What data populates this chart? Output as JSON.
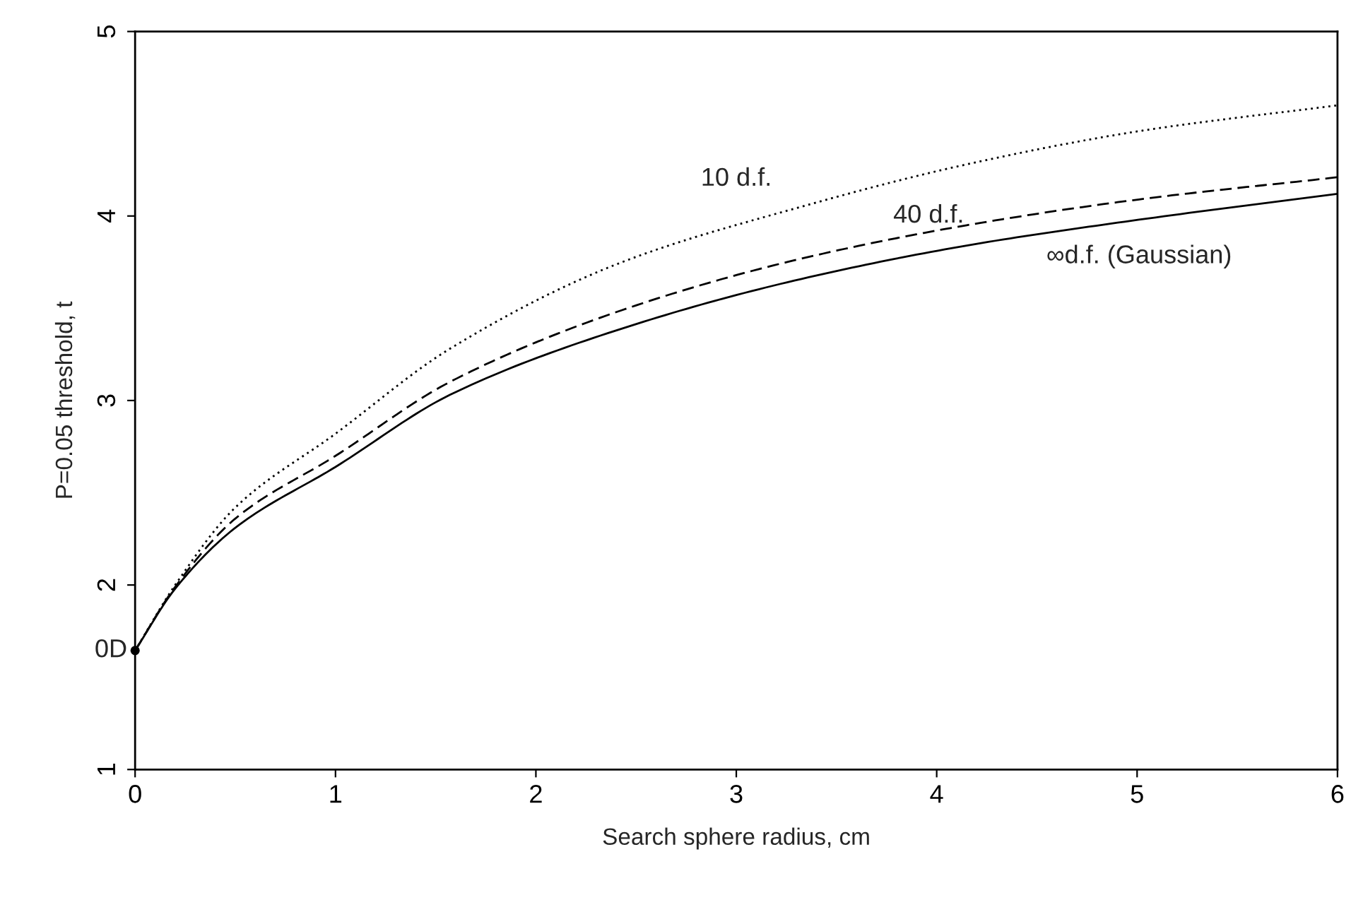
{
  "chart_data": {
    "type": "line",
    "xlabel": "Search sphere radius, cm",
    "ylabel": "P=0.05 threshold, t",
    "xlim": [
      0,
      6
    ],
    "ylim": [
      1,
      5
    ],
    "xticks": [
      0,
      1,
      2,
      3,
      4,
      5,
      6
    ],
    "yticks": [
      1,
      2,
      3,
      4,
      5
    ],
    "grid": false,
    "legend": false,
    "series": [
      {
        "color": "#000000",
        "line_style": "dotted",
        "x": [
          0,
          0.2,
          0.5,
          1,
          1.57,
          2.43,
          3.29,
          4.15,
          5.01,
          6
        ],
        "values": [
          1.645,
          2.0,
          2.42,
          2.82,
          3.28,
          3.75,
          4.04,
          4.28,
          4.46,
          4.6
        ]
      },
      {
        "color": "#000000",
        "line_style": "dashed",
        "x": [
          0,
          0.2,
          0.5,
          1,
          1.57,
          2.43,
          3.29,
          4.15,
          5.01,
          6
        ],
        "values": [
          1.645,
          1.99,
          2.36,
          2.7,
          3.1,
          3.49,
          3.76,
          3.95,
          4.09,
          4.21
        ]
      },
      {
        "color": "#000000",
        "line_style": "solid",
        "x": [
          0,
          0.2,
          0.5,
          1,
          1.57,
          2.43,
          3.29,
          4.15,
          5.01,
          6
        ],
        "values": [
          1.645,
          1.98,
          2.31,
          2.64,
          3.03,
          3.39,
          3.65,
          3.84,
          3.98,
          4.12
        ]
      },
      {
        "type": "scatter",
        "color": "#000000",
        "marker": "circle",
        "x": [
          0
        ],
        "values": [
          1.645
        ]
      }
    ],
    "annotations": [
      "10 d.f.",
      "40 d.f.",
      "∞d.f. (Gaussian)",
      {
        "text": "0D",
        "x": 0,
        "y": 1.645
      }
    ]
  }
}
